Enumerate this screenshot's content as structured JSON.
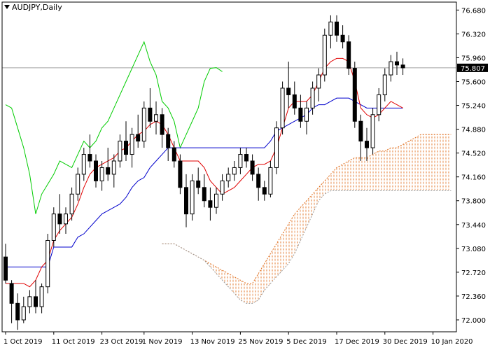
{
  "chart_data": {
    "type": "candlestick",
    "title": "AUDJPY,Daily",
    "symbol": "AUDJPY",
    "timeframe": "Daily",
    "ylim": [
      71.82,
      76.8
    ],
    "y_ticks": [
      "76.680",
      "76.320",
      "75.960",
      "75.600",
      "75.240",
      "74.880",
      "74.520",
      "74.160",
      "73.800",
      "73.440",
      "73.080",
      "72.720",
      "72.360",
      "72.000"
    ],
    "x_tick_labels": [
      "1 Oct 2019",
      "11 Oct 2019",
      "23 Oct 2019",
      "1 Nov 2019",
      "13 Nov 2019",
      "25 Nov 2019",
      "5 Dec 2019",
      "17 Dec 2019",
      "30 Dec 2019",
      "10 Jan 2020"
    ],
    "x_tick_bar_index": [
      0,
      8,
      16,
      23,
      31,
      39,
      47,
      55,
      63,
      71
    ],
    "current_price": "75.807",
    "current_price_value": 75.807,
    "ohlc": [
      [
        72.95,
        73.15,
        72.55,
        72.6
      ],
      [
        72.55,
        72.6,
        71.95,
        72.25
      ],
      [
        72.25,
        72.4,
        71.85,
        72.0
      ],
      [
        72.0,
        72.35,
        71.95,
        72.2
      ],
      [
        72.2,
        72.45,
        72.1,
        72.35
      ],
      [
        72.35,
        72.6,
        72.1,
        72.2
      ],
      [
        72.2,
        72.55,
        72.1,
        72.5
      ],
      [
        72.5,
        73.3,
        72.4,
        73.2
      ],
      [
        73.2,
        73.7,
        73.1,
        73.6
      ],
      [
        73.6,
        73.9,
        73.3,
        73.45
      ],
      [
        73.45,
        73.7,
        73.3,
        73.6
      ],
      [
        73.6,
        74.0,
        73.5,
        73.9
      ],
      [
        73.9,
        74.3,
        73.8,
        74.2
      ],
      [
        74.2,
        74.6,
        74.1,
        74.5
      ],
      [
        74.5,
        74.8,
        74.3,
        74.4
      ],
      [
        74.4,
        74.5,
        74.0,
        74.1
      ],
      [
        74.1,
        74.4,
        73.95,
        74.3
      ],
      [
        74.3,
        74.6,
        74.1,
        74.2
      ],
      [
        74.2,
        74.5,
        74.0,
        74.4
      ],
      [
        74.4,
        74.8,
        74.3,
        74.7
      ],
      [
        74.7,
        75.0,
        74.4,
        74.5
      ],
      [
        74.5,
        74.9,
        74.3,
        74.8
      ],
      [
        74.8,
        75.1,
        74.6,
        74.7
      ],
      [
        74.7,
        75.3,
        74.6,
        75.2
      ],
      [
        75.2,
        75.5,
        74.9,
        75.0
      ],
      [
        75.0,
        75.3,
        74.8,
        75.1
      ],
      [
        75.1,
        75.2,
        74.6,
        74.8
      ],
      [
        74.8,
        74.9,
        74.4,
        74.6
      ],
      [
        74.6,
        74.7,
        74.3,
        74.4
      ],
      [
        74.4,
        74.5,
        73.9,
        74.0
      ],
      [
        74.0,
        74.2,
        73.4,
        73.6
      ],
      [
        73.6,
        74.2,
        73.5,
        74.1
      ],
      [
        74.1,
        74.3,
        73.9,
        74.0
      ],
      [
        74.0,
        74.2,
        73.7,
        73.8
      ],
      [
        73.8,
        74.0,
        73.5,
        73.7
      ],
      [
        73.7,
        74.0,
        73.6,
        73.9
      ],
      [
        73.9,
        74.2,
        73.8,
        74.1
      ],
      [
        74.1,
        74.3,
        74.0,
        74.2
      ],
      [
        74.2,
        74.4,
        74.1,
        74.3
      ],
      [
        74.3,
        74.6,
        74.2,
        74.5
      ],
      [
        74.5,
        74.6,
        74.3,
        74.4
      ],
      [
        74.4,
        74.5,
        74.1,
        74.2
      ],
      [
        74.2,
        74.3,
        73.8,
        74.0
      ],
      [
        74.0,
        74.1,
        73.8,
        73.9
      ],
      [
        73.9,
        74.4,
        73.85,
        74.3
      ],
      [
        74.3,
        75.0,
        74.2,
        74.9
      ],
      [
        74.9,
        75.6,
        74.8,
        75.5
      ],
      [
        75.5,
        75.9,
        75.2,
        75.4
      ],
      [
        75.4,
        75.6,
        75.1,
        75.2
      ],
      [
        75.2,
        75.4,
        74.9,
        75.0
      ],
      [
        75.0,
        75.3,
        74.8,
        75.2
      ],
      [
        75.2,
        75.6,
        75.1,
        75.5
      ],
      [
        75.5,
        75.8,
        75.3,
        75.7
      ],
      [
        75.7,
        76.4,
        75.6,
        76.3
      ],
      [
        76.3,
        76.6,
        76.1,
        76.5
      ],
      [
        76.5,
        76.6,
        76.2,
        76.3
      ],
      [
        76.3,
        76.45,
        76.1,
        76.2
      ],
      [
        76.2,
        76.3,
        75.7,
        75.8
      ],
      [
        75.8,
        75.9,
        74.9,
        75.0
      ],
      [
        75.0,
        75.1,
        74.4,
        74.7
      ],
      [
        74.7,
        74.9,
        74.4,
        74.6
      ],
      [
        74.6,
        75.2,
        74.5,
        75.1
      ],
      [
        75.1,
        75.5,
        75.0,
        75.4
      ],
      [
        75.4,
        75.8,
        75.3,
        75.7
      ],
      [
        75.7,
        76.0,
        75.6,
        75.9
      ],
      [
        75.9,
        76.05,
        75.7,
        75.85
      ],
      [
        75.85,
        75.95,
        75.7,
        75.807
      ]
    ],
    "ichimoku": {
      "tenkan": [
        72.55,
        72.55,
        72.55,
        72.55,
        72.5,
        72.6,
        72.8,
        72.9,
        73.2,
        73.35,
        73.45,
        73.55,
        73.75,
        74.0,
        74.2,
        74.3,
        74.35,
        74.4,
        74.45,
        74.55,
        74.6,
        74.7,
        74.8,
        74.85,
        74.95,
        75.0,
        74.95,
        74.8,
        74.6,
        74.4,
        74.4,
        74.4,
        74.4,
        74.3,
        74.1,
        74.0,
        73.9,
        73.95,
        74.0,
        74.1,
        74.2,
        74.3,
        74.35,
        74.35,
        74.4,
        74.6,
        74.9,
        75.2,
        75.3,
        75.3,
        75.3,
        75.4,
        75.6,
        75.8,
        75.9,
        75.95,
        75.95,
        75.9,
        75.6,
        75.2,
        75.1,
        75.05,
        75.1,
        75.2,
        75.3,
        75.25,
        75.2
      ],
      "kijun": [
        72.8,
        72.8,
        72.8,
        72.8,
        72.8,
        72.8,
        72.8,
        72.8,
        73.1,
        73.1,
        73.1,
        73.1,
        73.25,
        73.3,
        73.4,
        73.5,
        73.6,
        73.65,
        73.7,
        73.75,
        73.85,
        74.0,
        74.1,
        74.15,
        74.3,
        74.4,
        74.5,
        74.6,
        74.6,
        74.6,
        74.6,
        74.6,
        74.6,
        74.6,
        74.6,
        74.6,
        74.6,
        74.6,
        74.6,
        74.6,
        74.6,
        74.6,
        74.6,
        74.6,
        74.7,
        74.85,
        74.9,
        74.95,
        75.0,
        75.05,
        75.1,
        75.2,
        75.25,
        75.25,
        75.3,
        75.35,
        75.35,
        75.35,
        75.3,
        75.25,
        75.2,
        75.2,
        75.2,
        75.2,
        75.2,
        75.2,
        75.2
      ],
      "chikou": [
        75.25,
        75.2,
        74.9,
        74.6,
        74.2,
        73.6,
        73.9,
        74.05,
        74.2,
        74.4,
        74.35,
        74.3,
        74.5,
        74.7,
        74.6,
        74.7,
        74.9,
        75.0,
        75.2,
        75.4,
        75.6,
        75.8,
        76.0,
        76.2,
        75.9,
        75.7,
        75.3,
        75.2,
        75.0,
        74.6,
        74.8,
        75.0,
        75.2,
        75.6,
        75.8,
        75.81,
        75.75
      ]
    },
    "cloud": {
      "span_a": [
        73.15,
        73.15,
        73.15,
        73.1,
        73.05,
        73.0,
        72.95,
        72.9,
        72.85,
        72.8,
        72.75,
        72.7,
        72.65,
        72.6,
        72.55,
        72.55,
        72.7,
        72.85,
        73.0,
        73.15,
        73.3,
        73.45,
        73.6,
        73.7,
        73.8,
        73.9,
        74.0,
        74.1,
        74.2,
        74.3,
        74.35,
        74.4,
        74.45,
        74.45,
        74.45,
        74.5,
        74.55,
        74.55,
        74.6,
        74.6,
        74.65,
        74.7,
        74.75,
        74.8,
        74.8,
        74.8,
        74.8,
        74.8,
        74.8
      ],
      "span_b": [
        73.15,
        73.15,
        73.15,
        73.1,
        73.05,
        73.0,
        72.95,
        72.9,
        72.8,
        72.7,
        72.6,
        72.5,
        72.4,
        72.3,
        72.25,
        72.25,
        72.3,
        72.45,
        72.55,
        72.65,
        72.75,
        72.85,
        73.0,
        73.2,
        73.4,
        73.6,
        73.8,
        73.9,
        73.95,
        73.95,
        73.95,
        73.95,
        73.95,
        73.95,
        73.95,
        73.95,
        73.95,
        73.95,
        73.95,
        73.95,
        73.95,
        73.95,
        73.95,
        73.95,
        73.95,
        73.95,
        73.95,
        73.95,
        73.95
      ]
    },
    "colors": {
      "bull_body": "#ffffff",
      "bear_body": "#000000",
      "wick": "#000000",
      "tenkan": "#e00000",
      "kijun": "#0000cc",
      "chikou": "#00cc00",
      "cloud_up": "#e07020",
      "cloud_down": "#9a9a9a",
      "price_line": "#a0a0a0",
      "grid_axis": "#000000"
    }
  }
}
